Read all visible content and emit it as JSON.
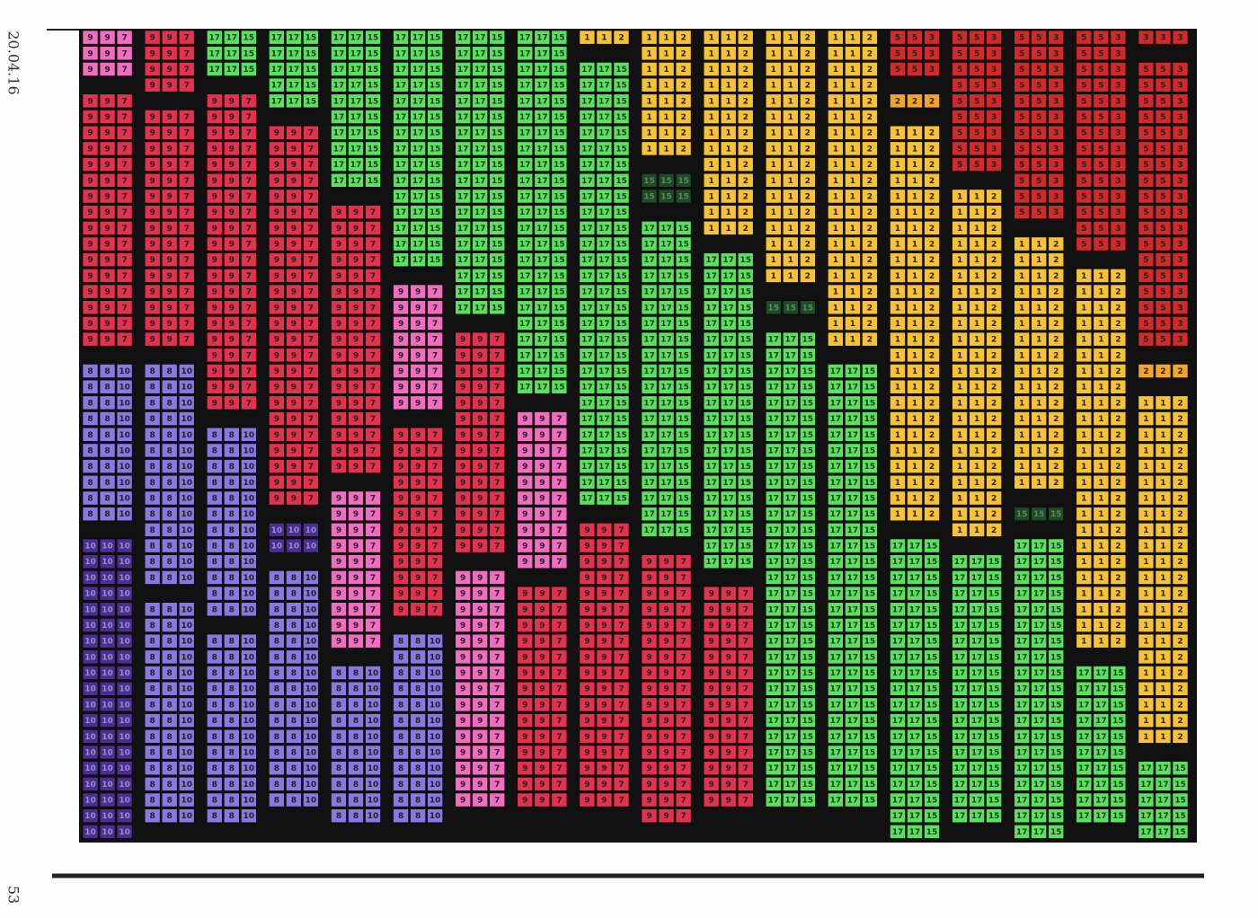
{
  "margin_date": "20.04.16",
  "page_number": "53",
  "styles": [
    {
      "labels": [
        "7",
        "7",
        "7"
      ],
      "color": "#f26cc0",
      "text": "#222"
    },
    {
      "labels": [
        "9",
        "9",
        "7"
      ],
      "color": "#e3324e",
      "text": "#222"
    },
    {
      "labels": [
        "9",
        "9",
        "7"
      ],
      "color": "#f26cc0",
      "text": "#222"
    },
    {
      "labels": [
        "10",
        "10",
        "10"
      ],
      "color": "#4a2f8e",
      "text": "#9a8ad0"
    },
    {
      "labels": [
        "8",
        "8",
        "10"
      ],
      "color": "#8878e0",
      "text": "#222"
    },
    {
      "labels": [
        "17",
        "17",
        "15"
      ],
      "color": "#5ce060",
      "text": "#1a3a1a"
    },
    {
      "labels": [
        "15",
        "15",
        "15"
      ],
      "color": "#1e4a26",
      "text": "#5a8a60"
    },
    {
      "labels": [
        "1",
        "1",
        "2"
      ],
      "color": "#f7c234",
      "text": "#222"
    },
    {
      "labels": [
        "2",
        "2",
        "2"
      ],
      "color": "#f2a52a",
      "text": "#222"
    },
    {
      "labels": [
        "5",
        "5",
        "3"
      ],
      "color": "#d02a2a",
      "text": "#222"
    },
    {
      "labels": [
        "3",
        "3",
        "3"
      ],
      "color": "#d02a2a",
      "text": "#222"
    }
  ],
  "columns": [
    [
      {
        "style": 2,
        "rows": 3
      },
      {
        "style": 1,
        "rows": 16
      },
      {
        "style": 4,
        "rows": 10
      },
      {
        "style": 3,
        "rows": 19
      }
    ],
    [
      {
        "style": 1,
        "rows": 4
      },
      {
        "style": 1,
        "rows": 15
      },
      {
        "style": 4,
        "rows": 14
      },
      {
        "style": 4,
        "rows": 14
      }
    ],
    [
      {
        "style": 5,
        "rows": 3
      },
      {
        "style": 1,
        "rows": 20
      },
      {
        "style": 4,
        "rows": 12
      },
      {
        "style": 4,
        "rows": 12
      }
    ],
    [
      {
        "style": 5,
        "rows": 5
      },
      {
        "style": 1,
        "rows": 24
      },
      {
        "style": 3,
        "rows": 2
      },
      {
        "style": 4,
        "rows": 15
      }
    ],
    [
      {
        "style": 5,
        "rows": 10
      },
      {
        "style": 1,
        "rows": 17
      },
      {
        "style": 2,
        "rows": 10
      },
      {
        "style": 4,
        "rows": 10
      }
    ],
    [
      {
        "style": 5,
        "rows": 15
      },
      {
        "style": 2,
        "rows": 8
      },
      {
        "style": 1,
        "rows": 12
      },
      {
        "style": 4,
        "rows": 12
      }
    ],
    [
      {
        "style": 5,
        "rows": 18
      },
      {
        "style": 1,
        "rows": 14
      },
      {
        "style": 2,
        "rows": 15
      }
    ],
    [
      {
        "style": 5,
        "rows": 23
      },
      {
        "style": 2,
        "rows": 10
      },
      {
        "style": 1,
        "rows": 14
      }
    ],
    [
      {
        "style": 7,
        "rows": 1
      },
      {
        "style": 5,
        "rows": 28
      },
      {
        "style": 1,
        "rows": 18
      }
    ],
    [
      {
        "style": 7,
        "rows": 8
      },
      {
        "style": 6,
        "rows": 2
      },
      {
        "style": 5,
        "rows": 20
      },
      {
        "style": 1,
        "rows": 17
      }
    ],
    [
      {
        "style": 7,
        "rows": 13
      },
      {
        "style": 5,
        "rows": 20
      },
      {
        "style": 1,
        "rows": 14
      }
    ],
    [
      {
        "style": 7,
        "rows": 16
      },
      {
        "style": 6,
        "rows": 1
      },
      {
        "style": 5,
        "rows": 30
      }
    ],
    [
      {
        "style": 7,
        "rows": 20
      },
      {
        "style": 5,
        "rows": 28
      }
    ],
    [
      {
        "style": 9,
        "rows": 3
      },
      {
        "style": 8,
        "rows": 1
      },
      {
        "style": 7,
        "rows": 25
      },
      {
        "style": 5,
        "rows": 19
      }
    ],
    [
      {
        "style": 9,
        "rows": 9
      },
      {
        "style": 7,
        "rows": 22
      },
      {
        "style": 5,
        "rows": 17
      }
    ],
    [
      {
        "style": 9,
        "rows": 12
      },
      {
        "style": 7,
        "rows": 16
      },
      {
        "style": 6,
        "rows": 1
      },
      {
        "style": 5,
        "rows": 19
      }
    ],
    [
      {
        "style": 9,
        "rows": 14
      },
      {
        "style": 7,
        "rows": 24
      },
      {
        "style": 5,
        "rows": 10
      }
    ],
    [
      {
        "style": 10,
        "rows": 1
      },
      {
        "style": 9,
        "rows": 18
      },
      {
        "style": 8,
        "rows": 1
      },
      {
        "style": 7,
        "rows": 22
      },
      {
        "style": 5,
        "rows": 5
      }
    ]
  ]
}
